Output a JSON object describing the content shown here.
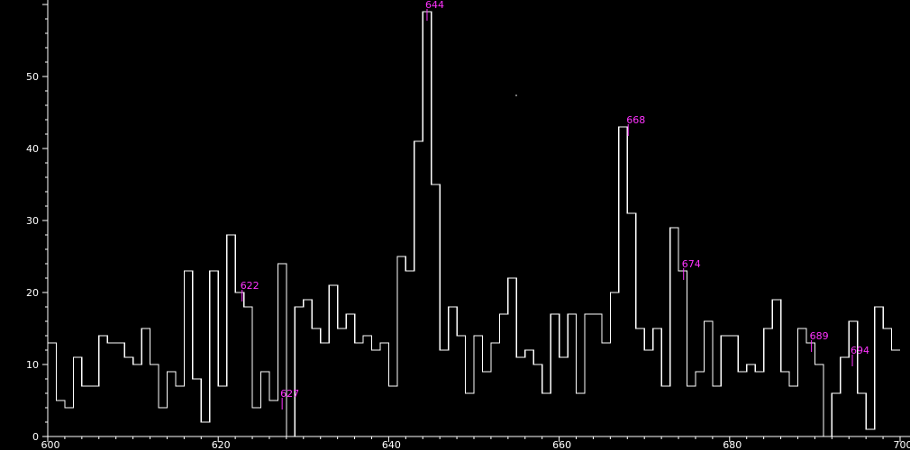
{
  "chart_data": {
    "type": "line",
    "style": "histogram-step",
    "title": "",
    "xlabel": "",
    "ylabel": "",
    "xlim": [
      600,
      700
    ],
    "ylim": [
      0,
      60
    ],
    "x_ticks": [
      600,
      620,
      640,
      660,
      680,
      700
    ],
    "y_ticks": [
      0,
      10,
      20,
      30,
      40,
      50
    ],
    "grid": false,
    "colors": {
      "background": "#000000",
      "line": "#ffffff",
      "annotation": "#ff33ff"
    },
    "bin_start": 600,
    "bin_width": 1,
    "series": [
      {
        "values": [
          13,
          5,
          4,
          11,
          7,
          7,
          14,
          13,
          13,
          11,
          10,
          15,
          10,
          4,
          9,
          7,
          23,
          8,
          2,
          23,
          7,
          28,
          20,
          18,
          4,
          9,
          5,
          24,
          0,
          18,
          19,
          15,
          13,
          21,
          15,
          17,
          13,
          14,
          12,
          13,
          7,
          25,
          23,
          41,
          59,
          35,
          12,
          18,
          14,
          6,
          14,
          9,
          13,
          17,
          22,
          11,
          12,
          10,
          6,
          17,
          11,
          17,
          6,
          17,
          17,
          13,
          20,
          43,
          31,
          15,
          12,
          15,
          7,
          29,
          23,
          7,
          9,
          16,
          7,
          14,
          14,
          9,
          10,
          9,
          15,
          19,
          9,
          7,
          15,
          13,
          10,
          0,
          6,
          11,
          16,
          6,
          1,
          18,
          15,
          12
        ]
      }
    ],
    "annotations": [
      {
        "text": "622",
        "x": 622.8,
        "y": 20
      },
      {
        "text": "627",
        "x": 627.5,
        "y": 5
      },
      {
        "text": "644",
        "x": 644.5,
        "y": 59
      },
      {
        "text": "668",
        "x": 668.1,
        "y": 43
      },
      {
        "text": "674",
        "x": 674.6,
        "y": 23
      },
      {
        "text": "689",
        "x": 689.6,
        "y": 13
      },
      {
        "text": "694",
        "x": 694.4,
        "y": 11
      }
    ]
  }
}
